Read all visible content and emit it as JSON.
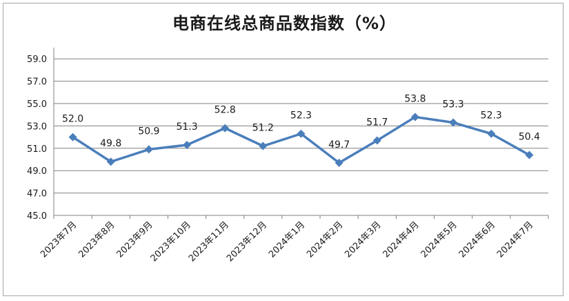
{
  "chart_data": {
    "type": "line",
    "title": "电商在线总商品数指数（%）",
    "xlabel": "",
    "ylabel": "",
    "categories": [
      "2023年7月",
      "2023年8月",
      "2023年9月",
      "2023年10月",
      "2023年11月",
      "2023年12月",
      "2024年1月",
      "2024年2月",
      "2024年3月",
      "2024年4月",
      "2024年5月",
      "2024年6月",
      "2024年7月"
    ],
    "series": [
      {
        "values": [
          52.0,
          49.8,
          50.9,
          51.3,
          52.8,
          51.2,
          52.3,
          49.7,
          51.7,
          53.8,
          53.3,
          52.3,
          50.4
        ]
      }
    ],
    "data_labels": [
      "52.0",
      "49.8",
      "50.9",
      "51.3",
      "52.8",
      "51.2",
      "52.3",
      "49.7",
      "51.7",
      "53.8",
      "53.3",
      "52.3",
      "50.4"
    ],
    "yticks": [
      "45.0",
      "47.0",
      "49.0",
      "51.0",
      "53.0",
      "55.0",
      "57.0",
      "59.0"
    ],
    "ylim": [
      45,
      60
    ],
    "grid": true,
    "legend": "none",
    "line_color": "#4a7ebb",
    "grid_color": "#808080"
  }
}
